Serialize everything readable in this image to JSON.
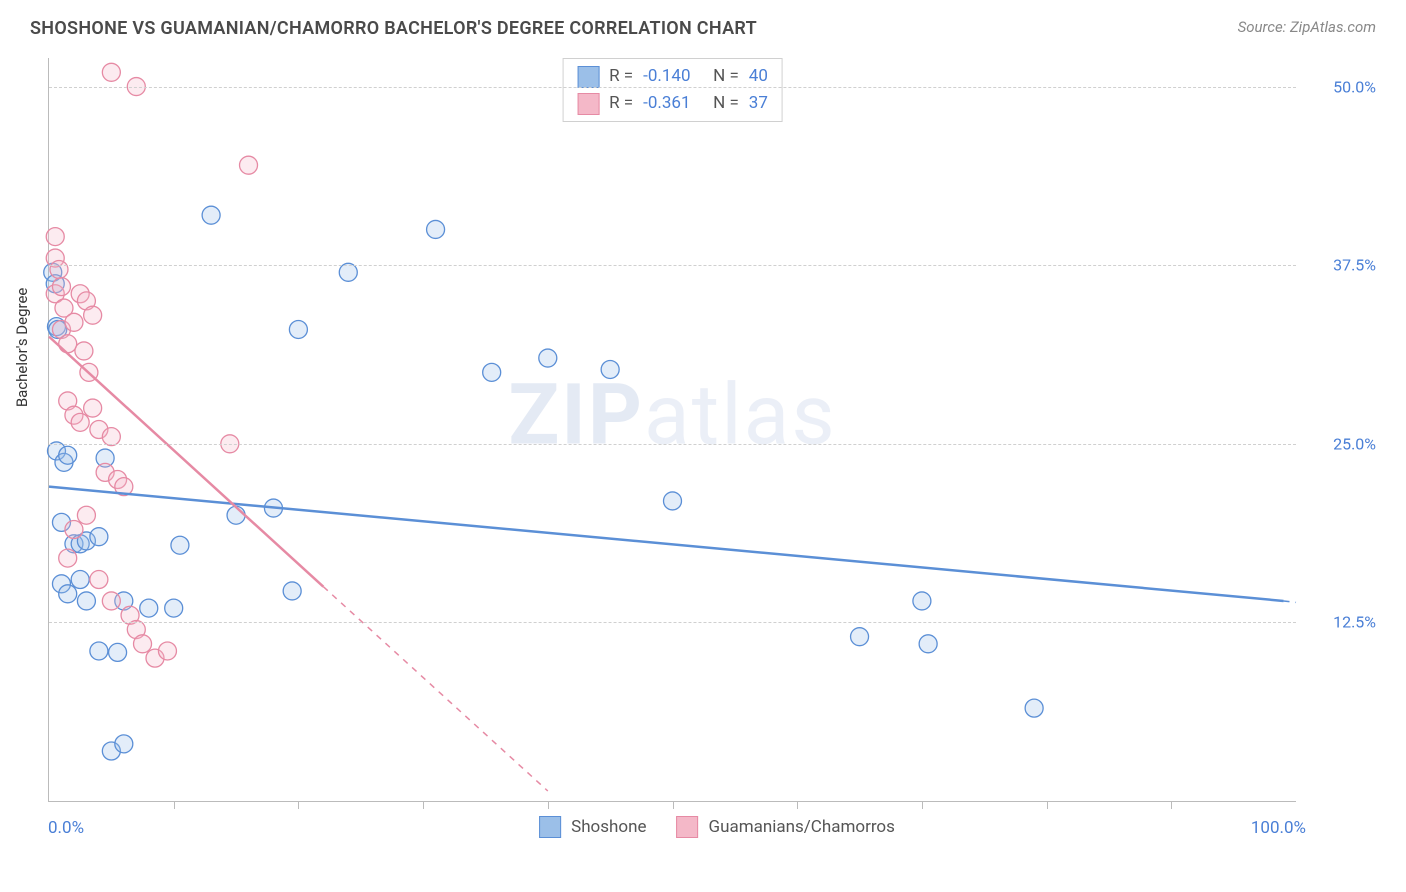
{
  "header": {
    "title": "SHOSHONE VS GUAMANIAN/CHAMORRO BACHELOR'S DEGREE CORRELATION CHART",
    "source_prefix": "Source: ",
    "source_name": "ZipAtlas.com"
  },
  "watermark": {
    "bold": "ZIP",
    "light": "atlas"
  },
  "chart": {
    "type": "scatter",
    "yaxis_title": "Bachelor's Degree",
    "xlim": [
      0,
      100
    ],
    "ylim": [
      0,
      52
    ],
    "xaxis_left_label": "0.0%",
    "xaxis_right_label": "100.0%",
    "xticks_pct": [
      10,
      20,
      30,
      40,
      50,
      60,
      70,
      80,
      90
    ],
    "yticks": [
      {
        "value": 12.5,
        "label": "12.5%"
      },
      {
        "value": 25.0,
        "label": "25.0%"
      },
      {
        "value": 37.5,
        "label": "37.5%"
      },
      {
        "value": 50.0,
        "label": "50.0%"
      }
    ],
    "grid_color": "#d0d0d0",
    "background_color": "#ffffff",
    "marker_radius": 9,
    "marker_fill_opacity": 0.28,
    "marker_stroke_width": 1.3,
    "series": [
      {
        "name": "Shoshone",
        "color_stroke": "#5b8fd6",
        "color_fill": "#9bbfe8",
        "stat_R": "-0.140",
        "stat_N": "40",
        "trend": {
          "x1": 0,
          "y1": 22.0,
          "x2": 99,
          "y2": 14.0
        },
        "trend_dash": {
          "x1": 99,
          "y1": 14.0,
          "x2": 100,
          "y2": 13.9
        },
        "points": [
          [
            0.3,
            37.0
          ],
          [
            0.5,
            36.2
          ],
          [
            0.6,
            33.2
          ],
          [
            0.7,
            33.0
          ],
          [
            0.6,
            24.5
          ],
          [
            1.2,
            23.7
          ],
          [
            1.5,
            24.2
          ],
          [
            4.5,
            24.0
          ],
          [
            1.0,
            19.5
          ],
          [
            2.0,
            18.0
          ],
          [
            2.5,
            18.0
          ],
          [
            3.0,
            18.2
          ],
          [
            4.0,
            18.5
          ],
          [
            1.0,
            15.2
          ],
          [
            2.5,
            15.5
          ],
          [
            1.5,
            14.5
          ],
          [
            3.0,
            14.0
          ],
          [
            4.0,
            10.5
          ],
          [
            6.0,
            14.0
          ],
          [
            8.0,
            13.5
          ],
          [
            10.0,
            13.5
          ],
          [
            5.0,
            3.5
          ],
          [
            6.0,
            4.0
          ],
          [
            5.5,
            10.4
          ],
          [
            10.5,
            17.9
          ],
          [
            13.0,
            41.0
          ],
          [
            15.0,
            20.0
          ],
          [
            18.0,
            20.5
          ],
          [
            19.5,
            14.7
          ],
          [
            20.0,
            33.0
          ],
          [
            24.0,
            37.0
          ],
          [
            31.0,
            40.0
          ],
          [
            35.5,
            30.0
          ],
          [
            40.0,
            31.0
          ],
          [
            45.0,
            30.2
          ],
          [
            50.0,
            21.0
          ],
          [
            65.0,
            11.5
          ],
          [
            70.0,
            14.0
          ],
          [
            79.0,
            6.5
          ],
          [
            70.5,
            11.0
          ]
        ]
      },
      {
        "name": "Guamanians/Chamorros",
        "color_stroke": "#e68aa4",
        "color_fill": "#f4b8c8",
        "stat_R": "-0.361",
        "stat_N": "37",
        "trend": {
          "x1": 0,
          "y1": 32.5,
          "x2": 22,
          "y2": 15.0
        },
        "trend_dash": {
          "x1": 22,
          "y1": 15.0,
          "x2": 40,
          "y2": 0.7
        },
        "points": [
          [
            0.5,
            39.5
          ],
          [
            0.5,
            38.0
          ],
          [
            0.8,
            37.2
          ],
          [
            0.5,
            35.5
          ],
          [
            1.0,
            36.0
          ],
          [
            1.2,
            34.5
          ],
          [
            1.0,
            33.0
          ],
          [
            1.5,
            32.0
          ],
          [
            2.0,
            33.5
          ],
          [
            2.5,
            35.5
          ],
          [
            3.0,
            35.0
          ],
          [
            3.5,
            34.0
          ],
          [
            2.8,
            31.5
          ],
          [
            3.2,
            30.0
          ],
          [
            1.5,
            28.0
          ],
          [
            2.0,
            27.0
          ],
          [
            2.5,
            26.5
          ],
          [
            3.5,
            27.5
          ],
          [
            4.0,
            26.0
          ],
          [
            5.0,
            25.5
          ],
          [
            4.5,
            23.0
          ],
          [
            5.5,
            22.5
          ],
          [
            6.0,
            22.0
          ],
          [
            3.0,
            20.0
          ],
          [
            2.0,
            19.0
          ],
          [
            1.5,
            17.0
          ],
          [
            4.0,
            15.5
          ],
          [
            5.0,
            14.0
          ],
          [
            6.5,
            13.0
          ],
          [
            7.0,
            12.0
          ],
          [
            7.5,
            11.0
          ],
          [
            8.5,
            10.0
          ],
          [
            5.0,
            51.0
          ],
          [
            7.0,
            50.0
          ],
          [
            16.0,
            44.5
          ],
          [
            14.5,
            25.0
          ],
          [
            9.5,
            10.5
          ]
        ]
      }
    ],
    "stat_legend_labels": {
      "R": "R =",
      "N": "N ="
    },
    "bottom_legend_labels": [
      "Shoshone",
      "Guamanians/Chamorros"
    ]
  }
}
